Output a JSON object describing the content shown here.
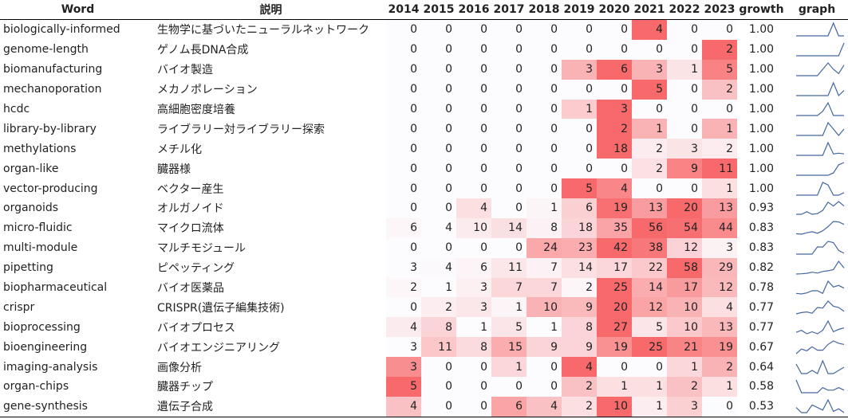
{
  "chart_data": {
    "type": "table",
    "headers": {
      "word": "Word",
      "desc": "説明",
      "years": [
        "2014",
        "2015",
        "2016",
        "2017",
        "2018",
        "2019",
        "2020",
        "2021",
        "2022",
        "2023"
      ],
      "growth": "growth",
      "graph": "graph"
    },
    "colors": {
      "low": "#fcfcff",
      "high": "#f8696b",
      "spark": "#44679f"
    },
    "rows": [
      {
        "word": "biologically-informed",
        "desc": "生物学に基づいたニューラルネットワーク",
        "values": [
          0,
          0,
          0,
          0,
          0,
          0,
          0,
          4,
          0,
          0
        ],
        "growth": "1.00"
      },
      {
        "word": "genome-length",
        "desc": "ゲノム長DNA合成",
        "values": [
          0,
          0,
          0,
          0,
          0,
          0,
          0,
          0,
          0,
          2
        ],
        "growth": "1.00"
      },
      {
        "word": "biomanufacturing",
        "desc": "バイオ製造",
        "values": [
          0,
          0,
          0,
          0,
          0,
          3,
          6,
          3,
          1,
          5
        ],
        "growth": "1.00"
      },
      {
        "word": "mechanoporation",
        "desc": "メカノポレーション",
        "values": [
          0,
          0,
          0,
          0,
          0,
          0,
          0,
          5,
          0,
          2
        ],
        "growth": "1.00"
      },
      {
        "word": "hcdc",
        "desc": "高細胞密度培養",
        "values": [
          0,
          0,
          0,
          0,
          0,
          1,
          3,
          0,
          0,
          0
        ],
        "growth": "1.00"
      },
      {
        "word": "library-by-library",
        "desc": "ライブラリー対ライブラリー探索",
        "values": [
          0,
          0,
          0,
          0,
          0,
          0,
          2,
          1,
          0,
          1
        ],
        "growth": "1.00"
      },
      {
        "word": "methylations",
        "desc": "メチル化",
        "values": [
          0,
          0,
          0,
          0,
          0,
          0,
          18,
          2,
          3,
          2
        ],
        "growth": "1.00"
      },
      {
        "word": "organ-like",
        "desc": "臓器様",
        "values": [
          0,
          0,
          0,
          0,
          0,
          0,
          0,
          2,
          9,
          11
        ],
        "growth": "1.00"
      },
      {
        "word": "vector-producing",
        "desc": "ベクター産生",
        "values": [
          0,
          0,
          0,
          0,
          0,
          5,
          4,
          0,
          0,
          1
        ],
        "growth": "1.00"
      },
      {
        "word": "organoids",
        "desc": "オルガノイド",
        "values": [
          0,
          0,
          4,
          0,
          1,
          6,
          19,
          13,
          20,
          13
        ],
        "growth": "0.93"
      },
      {
        "word": "micro-fluidic",
        "desc": "マイクロ流体",
        "values": [
          6,
          4,
          10,
          14,
          8,
          18,
          35,
          56,
          54,
          44
        ],
        "growth": "0.83"
      },
      {
        "word": "multi-module",
        "desc": "マルチモジュール",
        "values": [
          0,
          0,
          0,
          0,
          24,
          23,
          42,
          38,
          12,
          3
        ],
        "growth": "0.83"
      },
      {
        "word": "pipetting",
        "desc": "ピペッティング",
        "values": [
          3,
          4,
          6,
          11,
          7,
          14,
          17,
          22,
          58,
          29
        ],
        "growth": "0.82"
      },
      {
        "word": "biopharmaceutical",
        "desc": "バイオ医薬品",
        "values": [
          2,
          1,
          3,
          7,
          7,
          2,
          25,
          14,
          17,
          12
        ],
        "growth": "0.78"
      },
      {
        "word": "crispr",
        "desc": "CRISPR(遺伝子編集技術)",
        "values": [
          0,
          2,
          3,
          1,
          10,
          9,
          20,
          12,
          10,
          4
        ],
        "growth": "0.77"
      },
      {
        "word": "bioprocessing",
        "desc": "バイオプロセス",
        "values": [
          4,
          8,
          1,
          5,
          1,
          8,
          27,
          5,
          10,
          13
        ],
        "growth": "0.77"
      },
      {
        "word": "bioengineering",
        "desc": "バイオエンジニアリング",
        "values": [
          3,
          11,
          8,
          15,
          9,
          9,
          19,
          25,
          21,
          19
        ],
        "growth": "0.67"
      },
      {
        "word": "imaging-analysis",
        "desc": "画像分析",
        "values": [
          3,
          0,
          0,
          1,
          0,
          4,
          0,
          0,
          1,
          2
        ],
        "growth": "0.64"
      },
      {
        "word": "organ-chips",
        "desc": "臓器チップ",
        "values": [
          5,
          0,
          0,
          0,
          0,
          2,
          1,
          1,
          2,
          1
        ],
        "growth": "0.58"
      },
      {
        "word": "gene-synthesis",
        "desc": "遺伝子合成",
        "values": [
          4,
          0,
          0,
          6,
          4,
          2,
          10,
          1,
          3,
          0
        ],
        "growth": "0.53"
      }
    ]
  }
}
